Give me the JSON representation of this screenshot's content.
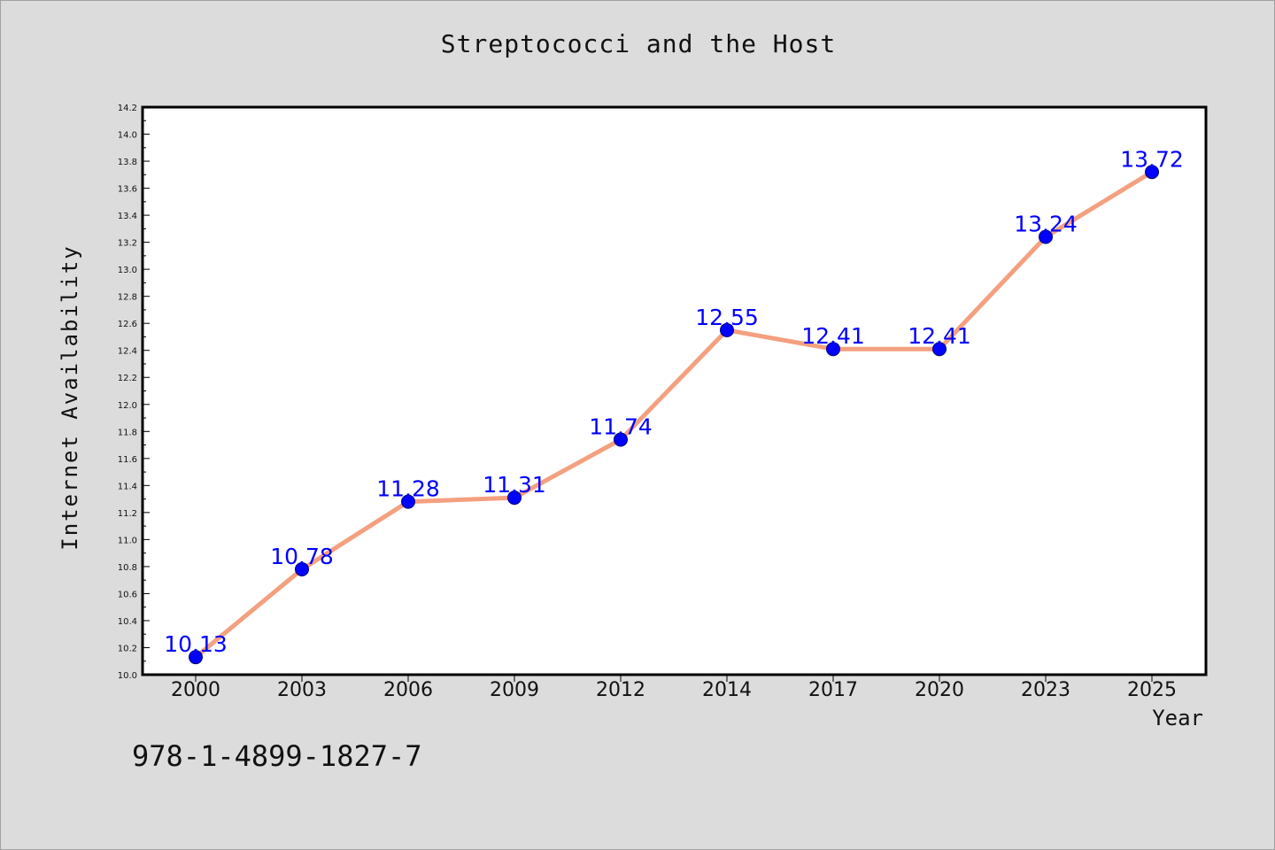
{
  "chart_data": {
    "type": "line",
    "title": "Streptococci and the Host",
    "xlabel": "Year",
    "ylabel": "Internet Availability",
    "categories": [
      "2000",
      "2003",
      "2006",
      "2009",
      "2012",
      "2014",
      "2017",
      "2020",
      "2023",
      "2025"
    ],
    "series": [
      {
        "values": [
          10.13,
          10.78,
          11.28,
          11.31,
          11.74,
          12.55,
          12.41,
          12.41,
          13.24,
          13.72
        ],
        "line_color": "#f4a07f",
        "marker_color": "#0000ff"
      }
    ],
    "data_labels": [
      "10.13",
      "10.78",
      "11.28",
      "11.31",
      "11.74",
      "12.55",
      "12.41",
      "12.41",
      "13.24",
      "13.72"
    ],
    "ylim": [
      10.0,
      14.2
    ],
    "yticks": [
      "10.0",
      "10.2",
      "10.4",
      "10.6",
      "10.8",
      "11.0",
      "11.2",
      "11.4",
      "11.6",
      "11.8",
      "12.0",
      "12.2",
      "12.4",
      "12.6",
      "12.8",
      "13.0",
      "13.2",
      "13.4",
      "13.6",
      "13.8",
      "14.0",
      "14.2"
    ],
    "grid": false,
    "legend": "none"
  },
  "annotation": {
    "isbn": "978-1-4899-1827-7"
  },
  "colors": {
    "background": "#dcdcdc",
    "plot_area": "#ffffff",
    "line": "#f4a07f",
    "marker": "#0000ff",
    "data_label": "#0000ff"
  }
}
